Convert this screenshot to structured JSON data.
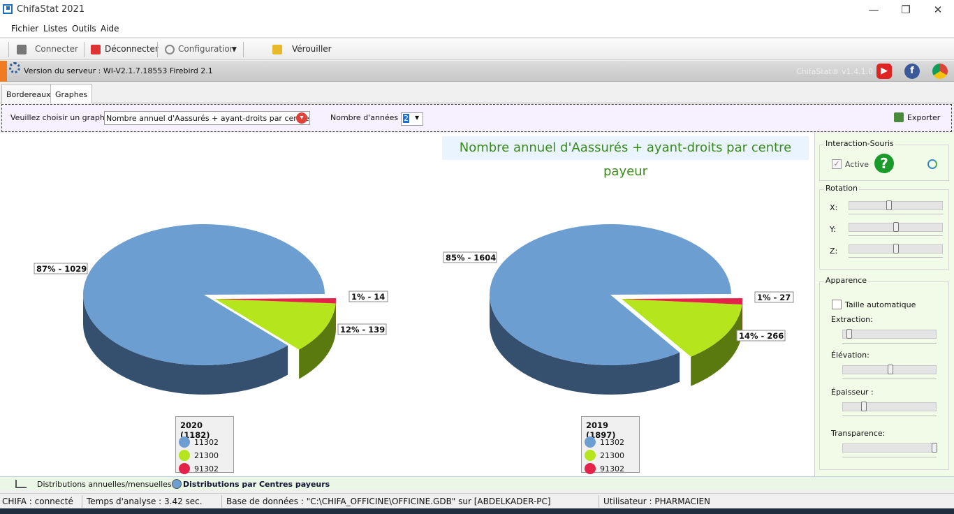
{
  "window": {
    "title": "ChifaStat 2021",
    "controls": [
      "—",
      "❐",
      "✕"
    ]
  },
  "menu": [
    "Fichier",
    "Listes",
    "Outils",
    "Aide"
  ],
  "toolbar": {
    "connect": "Connecter",
    "disconnect": "Déconnecter",
    "config": "Configuration",
    "lock": "Vérouiller"
  },
  "server": {
    "version_text": "Version du serveur : WI-V2.1.7.18553 Firebird 2.1",
    "app_version": "ChifaStat® v1.4.1.0"
  },
  "tabs": [
    "Bordereaux",
    "Graphes"
  ],
  "selector": {
    "choose_label": "Veuillez choisir un graphe",
    "graph_value": "Nombre annuel d'Aassurés + ayant-droits par centre payeur",
    "years_label": "Nombre d'années :",
    "years_value": "2",
    "export_label": "Exporter"
  },
  "colors": {
    "blue": "#6d9ed1",
    "green": "#b5e61d",
    "red": "#e5234a",
    "title_green": "#3a8a1a"
  },
  "chart_data": {
    "type": "pie",
    "title": "Nombre annuel d'Aassurés + ayant-droits par centre payeur",
    "charts": [
      {
        "legend_title": "2020 (1182)",
        "slices": [
          {
            "name": "11302",
            "value": 1029,
            "label": "87% - 1029"
          },
          {
            "name": "21300",
            "value": 139,
            "label": "12% - 139"
          },
          {
            "name": "91302",
            "value": 14,
            "label": "1% - 14"
          }
        ]
      },
      {
        "legend_title": "2019 (1897)",
        "slices": [
          {
            "name": "11302",
            "value": 1604,
            "label": "85% - 1604"
          },
          {
            "name": "21300",
            "value": 266,
            "label": "14% - 266"
          },
          {
            "name": "91302",
            "value": 27,
            "label": "1% - 27"
          }
        ]
      }
    ]
  },
  "side": {
    "mouse_group": "Interaction-Souris",
    "active_label": "Active",
    "rotation_group": "Rotation",
    "x_label": "X:",
    "y_label": "Y:",
    "z_label": "Z:",
    "appearance_group": "Apparence",
    "autosize_label": "Taille automatique",
    "extraction_label": "Extraction:",
    "elevation_label": "Élévation:",
    "thickness_label": "Épaisseur :",
    "transparency_label": "Transparence:"
  },
  "bottom_tabs": [
    "Distributions annuelles/mensuelles",
    "Distributions par Centres payeurs"
  ],
  "status": {
    "chifa": "CHIFA : connecté",
    "time": "Temps d'analyse : 3.42 sec.",
    "db": "Base de données : \"C:\\CHIFA_OFFICINE\\OFFICINE.GDB\" sur [ABDELKADER-PC]",
    "user": "Utilisateur : PHARMACIEN"
  }
}
